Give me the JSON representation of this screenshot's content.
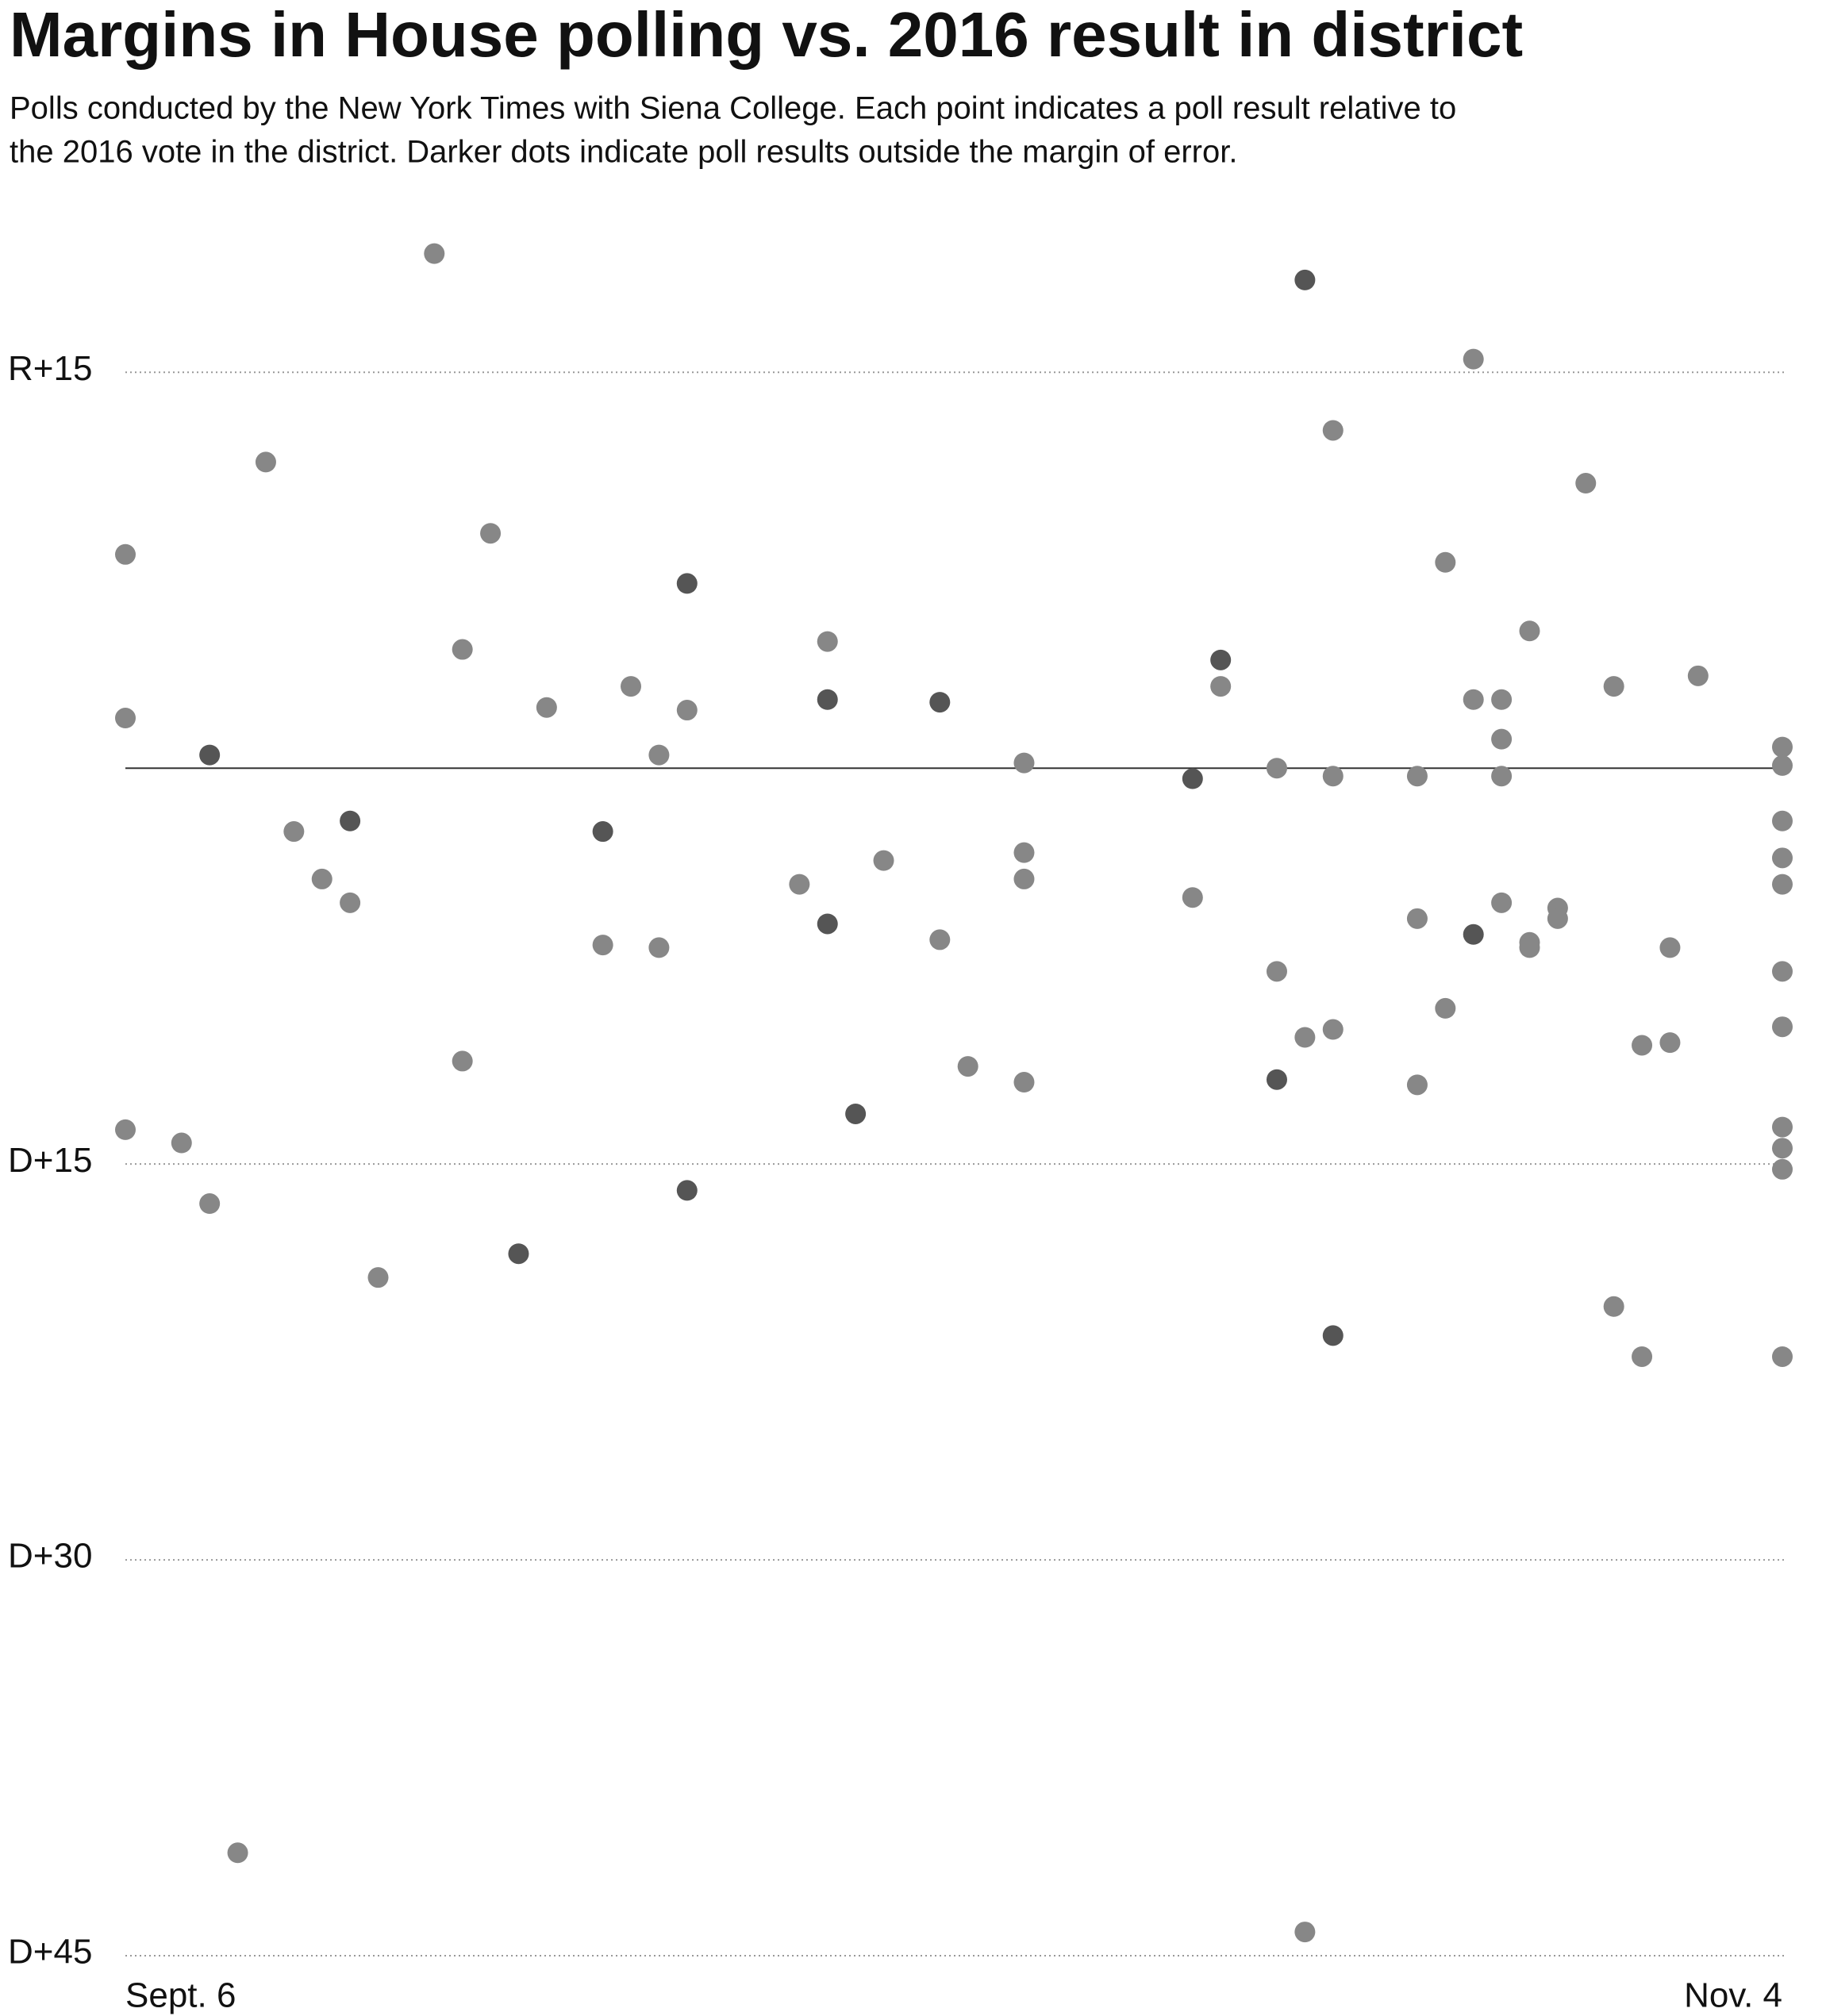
{
  "chart_data": {
    "type": "scatter",
    "title": "Margins in House polling vs. 2016 result in district",
    "subtitle": [
      "Polls conducted by the New York Times with Siena College. Each point indicates a poll result relative to",
      "the 2016 vote in the district. Darker dots indicate poll results outside the margin of error."
    ],
    "xlim": [
      0,
      59
    ],
    "xticks": [
      {
        "value": 0,
        "label": "Sept. 6"
      },
      {
        "value": 59,
        "label": "Nov. 4"
      }
    ],
    "ylim": [
      -45,
      20
    ],
    "yticks": [
      {
        "value": 15,
        "label": "R+15"
      },
      {
        "value": -15,
        "label": "D+15"
      },
      {
        "value": -30,
        "label": "D+30"
      },
      {
        "value": -45,
        "label": "D+45"
      }
    ],
    "baseline": 0,
    "grid": true,
    "series": [
      {
        "color": "#878787",
        "x": [
          11,
          0,
          0,
          0,
          2,
          3,
          4,
          5,
          6,
          7,
          8,
          9,
          12,
          12,
          13,
          15,
          17,
          18,
          19,
          19,
          20,
          24,
          25,
          27,
          29,
          30,
          32,
          32,
          32,
          32,
          38,
          39,
          41,
          41,
          42,
          42,
          43,
          43,
          43,
          46,
          46,
          46,
          47,
          47,
          48,
          48,
          49,
          49,
          49,
          49,
          50,
          50,
          50,
          51,
          51,
          52,
          53,
          53,
          54,
          54,
          55,
          55,
          56,
          59,
          59,
          59,
          59,
          59,
          59,
          59,
          59,
          59,
          59,
          59
        ],
        "values": [
          19.5,
          8.1,
          1.9,
          -13.7,
          -14.2,
          -16.5,
          -41.1,
          11.6,
          -2.4,
          -4.2,
          -5.1,
          -19.3,
          4.5,
          -11.1,
          8.9,
          2.3,
          -6.7,
          3.1,
          0.5,
          -6.8,
          2.2,
          -4.4,
          4.8,
          -3.5,
          -6.5,
          -11.3,
          0.2,
          -3.2,
          -4.2,
          -11.9,
          -4.9,
          3.1,
          0,
          -7.7,
          -10.2,
          -44.1,
          12.8,
          -0.3,
          -9.9,
          -0.3,
          -5.7,
          -12,
          7.8,
          -9.1,
          15.5,
          2.6,
          2.6,
          1.1,
          -0.3,
          -5.1,
          5.2,
          -6.6,
          -6.8,
          -5.3,
          -5.7,
          10.8,
          3.1,
          -20.4,
          -10.5,
          -22.3,
          -6.8,
          -10.4,
          3.5,
          0.8,
          0.1,
          -2,
          -3.4,
          -4.4,
          -7.7,
          -9.8,
          -13.6,
          -14.4,
          -15.2,
          -22.3
        ]
      },
      {
        "color": "#555555",
        "x": [
          3,
          8,
          14,
          17,
          20,
          20,
          25,
          25,
          26,
          29,
          38,
          39,
          41,
          42,
          43,
          48
        ],
        "values": [
          0.5,
          -2,
          -18.4,
          -2.4,
          7,
          -16,
          2.6,
          -5.9,
          -13.1,
          2.5,
          -0.4,
          4.1,
          -11.8,
          18.5,
          -21.5,
          -6.3
        ]
      }
    ]
  }
}
